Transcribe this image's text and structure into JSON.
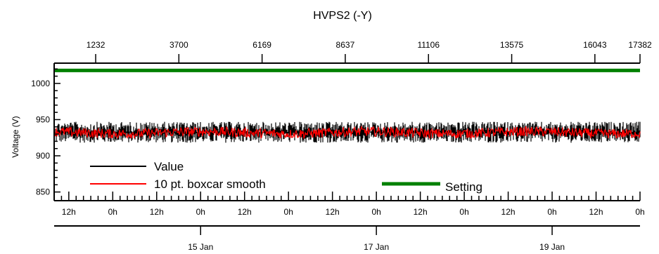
{
  "chart_data": {
    "type": "line",
    "title": "HVPS2 (-Y)",
    "ylabel": "Voltage (V)",
    "xlabel": "",
    "ylim": [
      838,
      1028
    ],
    "yticks": [
      850,
      900,
      950,
      1000
    ],
    "top_axis": {
      "range": [
        0,
        17382
      ],
      "ticks": [
        1232,
        3700,
        6169,
        8637,
        11106,
        13575,
        16043,
        17382
      ]
    },
    "time_axis": {
      "start": "2021-01-13 08:00",
      "end": "2021-01-20 00:00",
      "labeled_ticks": [
        "2021-01-13 12:00",
        "2021-01-14 00:00",
        "2021-01-14 12:00",
        "2021-01-15 00:00",
        "2021-01-15 12:00",
        "2021-01-16 00:00",
        "2021-01-16 12:00",
        "2021-01-17 00:00",
        "2021-01-17 12:00",
        "2021-01-18 00:00",
        "2021-01-18 12:00",
        "2021-01-19 00:00",
        "2021-01-19 12:00",
        "2021-01-20 00:00"
      ],
      "tick_labels": [
        "12h",
        "0h",
        "12h",
        "0h",
        "12h",
        "0h",
        "12h",
        "0h",
        "12h",
        "0h",
        "12h",
        "0h",
        "12h",
        "0h"
      ],
      "date_ticks": [
        "2021-01-15 00:00",
        "2021-01-17 00:00",
        "2021-01-19 00:00"
      ],
      "date_labels": [
        "15 Jan",
        "17 Jan",
        "19 Jan"
      ]
    },
    "series": [
      {
        "name": "Value",
        "color": "#000000",
        "mean": 932,
        "min": 918,
        "max": 947
      },
      {
        "name": "10 pt. boxcar smooth",
        "color": "#ff0000",
        "mean": 932,
        "min": 923,
        "max": 941
      },
      {
        "name": "Setting",
        "color": "#008000",
        "value": 1018
      }
    ],
    "legend": [
      "Value",
      "10 pt. boxcar smooth",
      "Setting"
    ]
  }
}
